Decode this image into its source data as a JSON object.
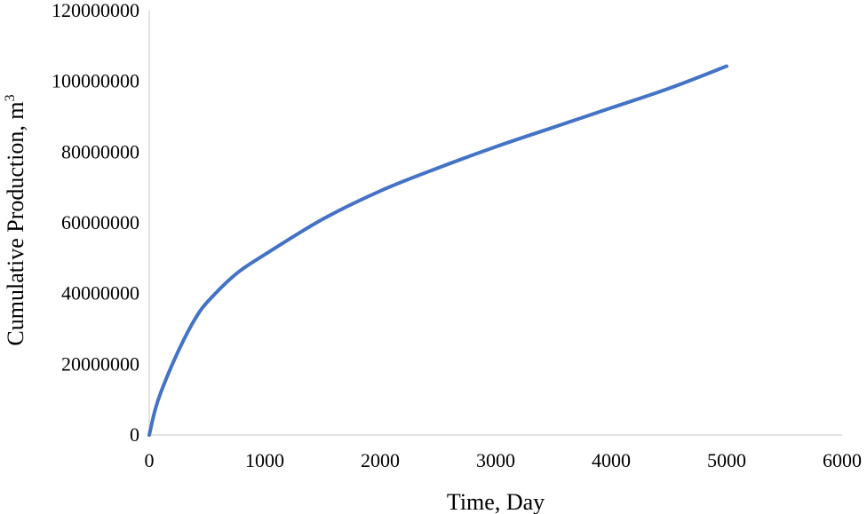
{
  "chart_data": {
    "type": "line",
    "title": "",
    "xlabel": "Time, Day",
    "ylabel_text": "Cumulative Production, m",
    "ylabel_sup": "3",
    "xlim": [
      0,
      6000
    ],
    "ylim": [
      0,
      120000000
    ],
    "x_ticks": [
      "0",
      "1000",
      "2000",
      "3000",
      "4000",
      "5000",
      "6000"
    ],
    "y_ticks": [
      "0",
      "20000000",
      "40000000",
      "60000000",
      "80000000",
      "100000000",
      "120000000"
    ],
    "x_tick_values": [
      0,
      1000,
      2000,
      3000,
      4000,
      5000,
      6000
    ],
    "y_tick_values": [
      0,
      20000000,
      40000000,
      60000000,
      80000000,
      100000000,
      120000000
    ],
    "grid": false,
    "legend": "none",
    "series": [
      {
        "color": "#4472C4",
        "x": [
          0,
          50,
          100,
          200,
          300,
          400,
          500,
          750,
          1000,
          1500,
          2000,
          2500,
          3000,
          3500,
          4000,
          4500,
          5000
        ],
        "y": [
          0,
          7000000,
          12000000,
          20000000,
          27000000,
          33000000,
          37500000,
          45500000,
          51000000,
          61000000,
          69000000,
          75500000,
          81500000,
          87000000,
          92500000,
          98000000,
          104300000
        ]
      }
    ]
  }
}
